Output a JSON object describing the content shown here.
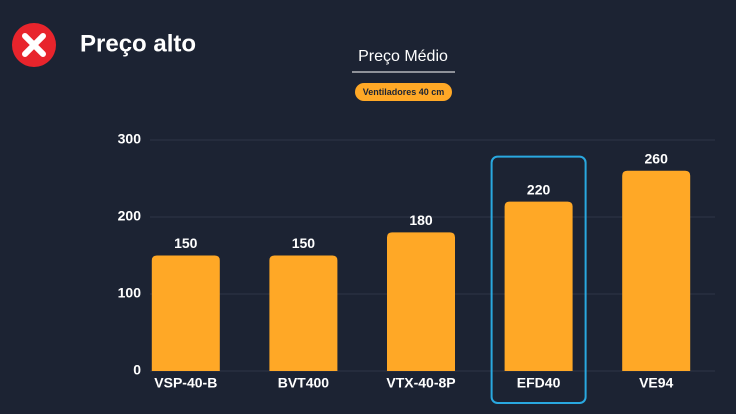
{
  "header": {
    "title": "Preço alto"
  },
  "chart_data": {
    "type": "bar",
    "title": "Preço Médio",
    "subtitle": "Ventiladores 40 cm",
    "categories": [
      "VSP-40-B",
      "BVT400",
      "VTX-40-8P",
      "EFD40",
      "VE94"
    ],
    "values": [
      150,
      150,
      180,
      220,
      260
    ],
    "color": "#ffa826",
    "ylim": [
      0,
      300
    ],
    "yticks": [
      0,
      100,
      200,
      300
    ],
    "grid": true,
    "highlight": "EFD40"
  }
}
